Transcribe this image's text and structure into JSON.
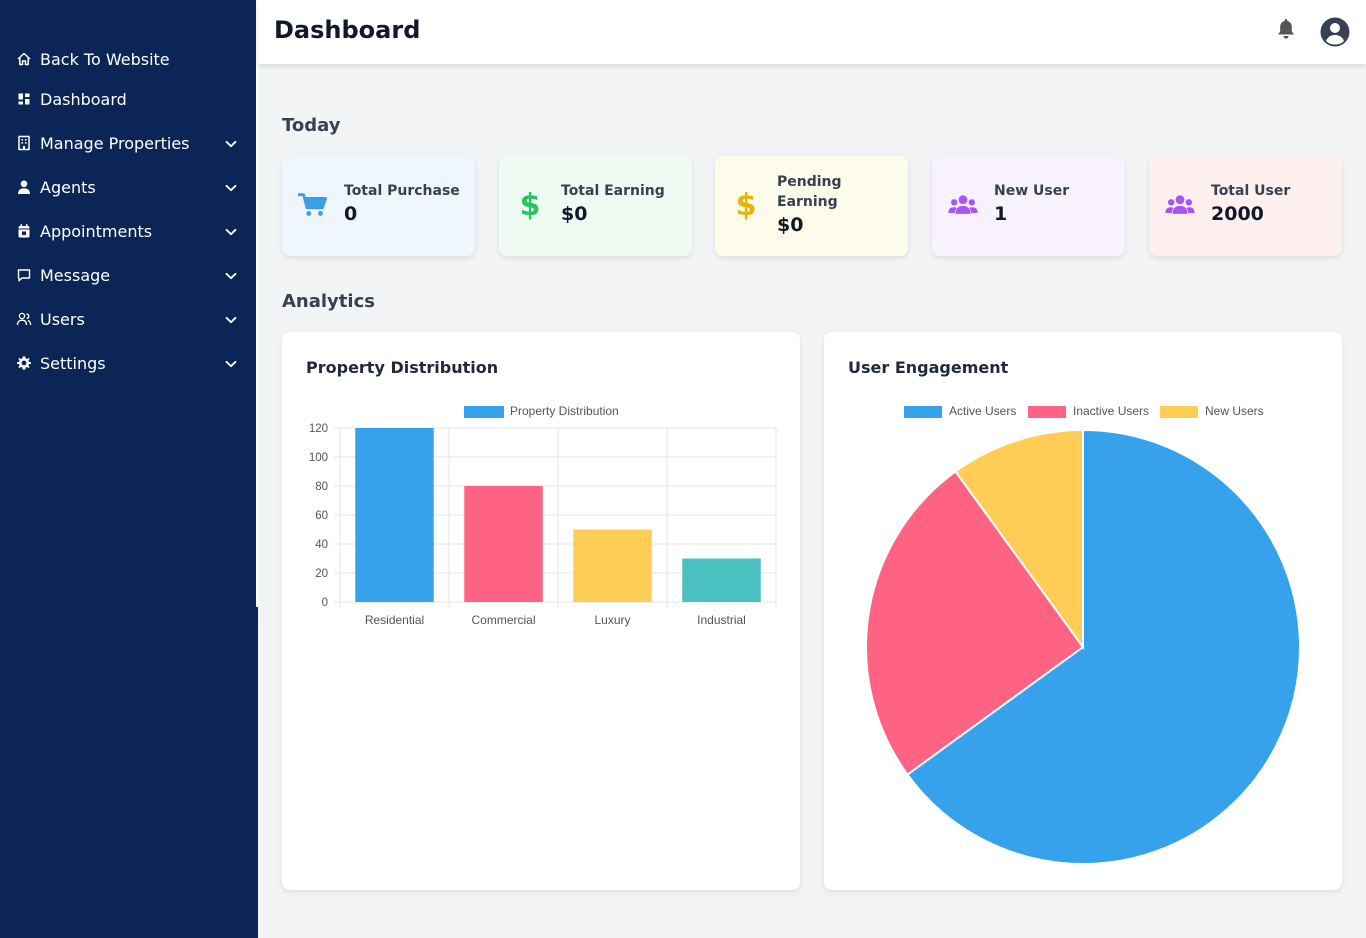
{
  "sidebar": {
    "items": [
      {
        "label": "Back To Website",
        "icon": "home-icon",
        "has_chevron": false
      },
      {
        "label": "Dashboard",
        "icon": "dashboard-icon",
        "has_chevron": false
      },
      {
        "label": "Manage Properties",
        "icon": "building-icon",
        "has_chevron": true
      },
      {
        "label": "Agents",
        "icon": "person-icon",
        "has_chevron": true
      },
      {
        "label": "Appointments",
        "icon": "calendar-icon",
        "has_chevron": true
      },
      {
        "label": "Message",
        "icon": "message-icon",
        "has_chevron": true
      },
      {
        "label": "Users",
        "icon": "users-icon",
        "has_chevron": true
      },
      {
        "label": "Settings",
        "icon": "gear-icon",
        "has_chevron": true
      }
    ]
  },
  "header": {
    "title": "Dashboard",
    "bell_icon": "bell-icon",
    "user_icon": "user-circle-icon"
  },
  "today": {
    "title": "Today",
    "cards": [
      {
        "label": "Total Purchase",
        "value": "0",
        "icon": "cart-icon",
        "icon_color": "#3b9fe6",
        "bg": "#eff6fd"
      },
      {
        "label": "Total Earning",
        "value": "$0",
        "icon": "dollar-icon",
        "icon_color": "#22c55e",
        "bg": "#eefaf2"
      },
      {
        "label": "Pending Earning",
        "value": "$0",
        "icon": "dollar-icon",
        "icon_color": "#eab308",
        "bg": "#fdfbea"
      },
      {
        "label": "New User",
        "value": "1",
        "icon": "users-icon",
        "icon_color": "#a855f7",
        "bg": "#f7f2fd"
      },
      {
        "label": "Total User",
        "value": "2000",
        "icon": "users-icon",
        "icon_color": "#a855f7",
        "bg": "#fdf0ef"
      }
    ]
  },
  "analytics": {
    "title": "Analytics"
  },
  "chart_data": [
    {
      "type": "bar",
      "title": "Property Distribution",
      "categories": [
        "Residential",
        "Commercial",
        "Luxury",
        "Industrial"
      ],
      "series": [
        {
          "name": "Property Distribution",
          "values": [
            120,
            80,
            50,
            30
          ]
        }
      ],
      "colors": [
        "#36a2eb",
        "#ff6384",
        "#ffcd56",
        "#4bc0c0"
      ],
      "legend_color": "#36a2eb",
      "ylim": [
        0,
        120
      ],
      "yticks": [
        0,
        20,
        40,
        60,
        80,
        100,
        120
      ],
      "grid": true,
      "legend": "top"
    },
    {
      "type": "pie",
      "title": "User Engagement",
      "labels": [
        "Active Users",
        "Inactive Users",
        "New Users"
      ],
      "values": [
        65,
        25,
        10
      ],
      "colors": [
        "#36a2eb",
        "#ff6384",
        "#ffcd56"
      ],
      "legend": "top"
    }
  ]
}
